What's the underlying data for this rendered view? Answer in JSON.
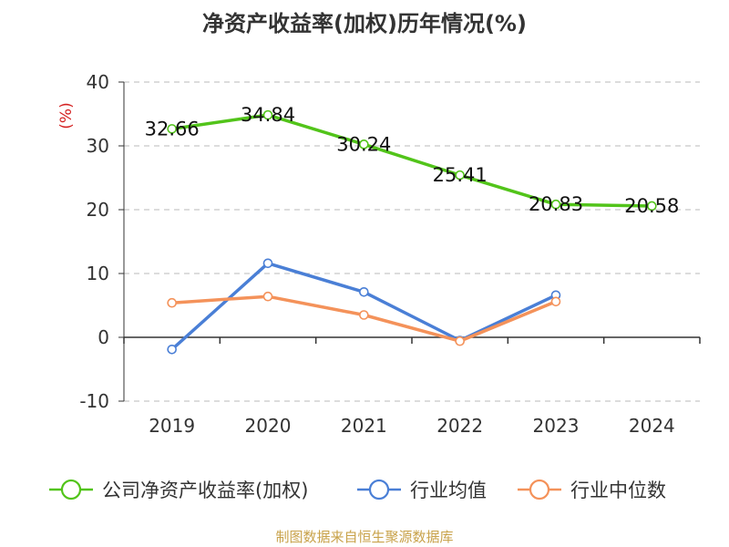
{
  "chart_data": {
    "type": "line",
    "title": "净资产收益率(加权)历年情况(%)",
    "ylabel": "(%)",
    "xlabel": "",
    "categories": [
      "2019",
      "2020",
      "2021",
      "2022",
      "2023",
      "2024"
    ],
    "ylim": [
      -10,
      40
    ],
    "yticks": [
      "40",
      "30",
      "20",
      "10",
      "0",
      "-10"
    ],
    "grid": true,
    "legend_position": "bottom",
    "series": [
      {
        "name": "公司净资产收益率(加权)",
        "color": "#52c41a",
        "values": [
          32.66,
          34.84,
          30.24,
          25.41,
          20.83,
          20.58
        ],
        "labels": [
          "32.66",
          "34.84",
          "30.24",
          "25.41",
          "20.83",
          "20.58"
        ]
      },
      {
        "name": "行业均值",
        "color": "#4a7fd6",
        "values": [
          -1.9,
          11.6,
          7.1,
          -0.5,
          6.6,
          null
        ]
      },
      {
        "name": "行业中位数",
        "color": "#f4925a",
        "values": [
          5.4,
          6.4,
          3.5,
          -0.6,
          5.6,
          null
        ]
      }
    ],
    "source": "制图数据来自恒生聚源数据库"
  }
}
